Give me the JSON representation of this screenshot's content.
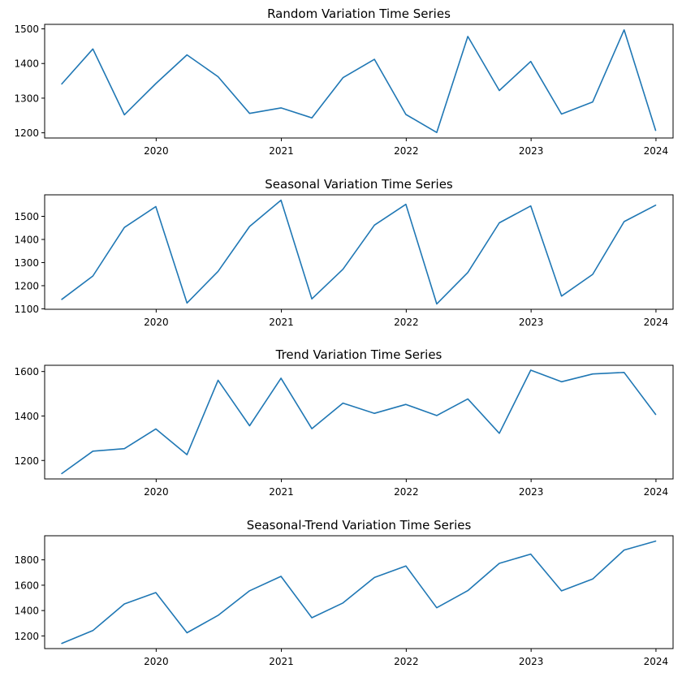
{
  "style": {
    "line_color": "#1f77b4",
    "frame_color": "#000000",
    "background": "#ffffff"
  },
  "chart_data": [
    {
      "type": "line",
      "title": "Random Variation Time Series",
      "xlabel": "",
      "ylabel": "",
      "x": [
        "2019-03-31",
        "2019-06-30",
        "2019-09-30",
        "2019-12-31",
        "2020-03-31",
        "2020-06-30",
        "2020-09-30",
        "2020-12-31",
        "2021-03-31",
        "2021-06-30",
        "2021-09-30",
        "2021-12-31",
        "2022-03-31",
        "2022-06-30",
        "2022-09-30",
        "2022-12-31",
        "2023-03-31",
        "2023-06-30",
        "2023-09-30",
        "2023-12-31"
      ],
      "series": [
        {
          "values": [
            1341,
            1442,
            1252,
            1342,
            1425,
            1362,
            1256,
            1272,
            1243,
            1359,
            1412,
            1253,
            1201,
            1478,
            1322,
            1406,
            1254,
            1289,
            1497,
            1207
          ]
        }
      ],
      "xlim": [
        "2019-02-09",
        "2024-02-20"
      ],
      "ylim": [
        1185,
        1513
      ],
      "x_ticks": [
        "2020",
        "2021",
        "2022",
        "2023",
        "2024"
      ],
      "y_ticks": [
        1200,
        1300,
        1400,
        1500
      ],
      "grid": false
    },
    {
      "type": "line",
      "title": "Seasonal Variation Time Series",
      "xlabel": "",
      "ylabel": "",
      "x": [
        "2019-03-31",
        "2019-06-30",
        "2019-09-30",
        "2019-12-31",
        "2020-03-31",
        "2020-06-30",
        "2020-09-30",
        "2020-12-31",
        "2021-03-31",
        "2021-06-30",
        "2021-09-30",
        "2021-12-31",
        "2022-03-31",
        "2022-06-30",
        "2022-09-30",
        "2022-12-31",
        "2023-03-31",
        "2023-06-30",
        "2023-09-30",
        "2023-12-31"
      ],
      "series": [
        {
          "values": [
            1141,
            1242,
            1452,
            1542,
            1125,
            1262,
            1456,
            1570,
            1143,
            1271,
            1462,
            1552,
            1121,
            1257,
            1472,
            1545,
            1155,
            1249,
            1477,
            1548
          ]
        }
      ],
      "xlim": [
        "2019-02-09",
        "2024-02-20"
      ],
      "ylim": [
        1098,
        1593
      ],
      "x_ticks": [
        "2020",
        "2021",
        "2022",
        "2023",
        "2024"
      ],
      "y_ticks": [
        1100,
        1200,
        1300,
        1400,
        1500
      ],
      "grid": false
    },
    {
      "type": "line",
      "title": "Trend Variation Time Series",
      "xlabel": "",
      "ylabel": "",
      "x": [
        "2019-03-31",
        "2019-06-30",
        "2019-09-30",
        "2019-12-31",
        "2020-03-31",
        "2020-06-30",
        "2020-09-30",
        "2020-12-31",
        "2021-03-31",
        "2021-06-30",
        "2021-09-30",
        "2021-12-31",
        "2022-03-31",
        "2022-06-30",
        "2022-09-30",
        "2022-12-31",
        "2023-03-31",
        "2023-06-30",
        "2023-09-30",
        "2023-12-31"
      ],
      "series": [
        {
          "values": [
            1141,
            1242,
            1253,
            1342,
            1226,
            1561,
            1356,
            1570,
            1343,
            1458,
            1412,
            1452,
            1402,
            1477,
            1322,
            1606,
            1554,
            1589,
            1596,
            1407
          ]
        }
      ],
      "xlim": [
        "2019-02-09",
        "2024-02-20"
      ],
      "ylim": [
        1117,
        1628
      ],
      "x_ticks": [
        "2020",
        "2021",
        "2022",
        "2023",
        "2024"
      ],
      "y_ticks": [
        1200,
        1400,
        1600
      ],
      "grid": false
    },
    {
      "type": "line",
      "title": "Seasonal-Trend Variation Time Series",
      "xlabel": "",
      "ylabel": "",
      "x": [
        "2019-03-31",
        "2019-06-30",
        "2019-09-30",
        "2019-12-31",
        "2020-03-31",
        "2020-06-30",
        "2020-09-30",
        "2020-12-31",
        "2021-03-31",
        "2021-06-30",
        "2021-09-30",
        "2021-12-31",
        "2022-03-31",
        "2022-06-30",
        "2022-09-30",
        "2022-12-31",
        "2023-03-31",
        "2023-06-30",
        "2023-09-30",
        "2023-12-31"
      ],
      "series": [
        {
          "values": [
            1141,
            1242,
            1452,
            1542,
            1225,
            1362,
            1556,
            1670,
            1343,
            1460,
            1661,
            1752,
            1422,
            1557,
            1772,
            1845,
            1555,
            1649,
            1877,
            1948
          ]
        }
      ],
      "xlim": [
        "2019-02-09",
        "2024-02-20"
      ],
      "ylim": [
        1100,
        1990
      ],
      "x_ticks": [
        "2020",
        "2021",
        "2022",
        "2023",
        "2024"
      ],
      "y_ticks": [
        1200,
        1400,
        1600,
        1800
      ],
      "grid": false
    }
  ]
}
